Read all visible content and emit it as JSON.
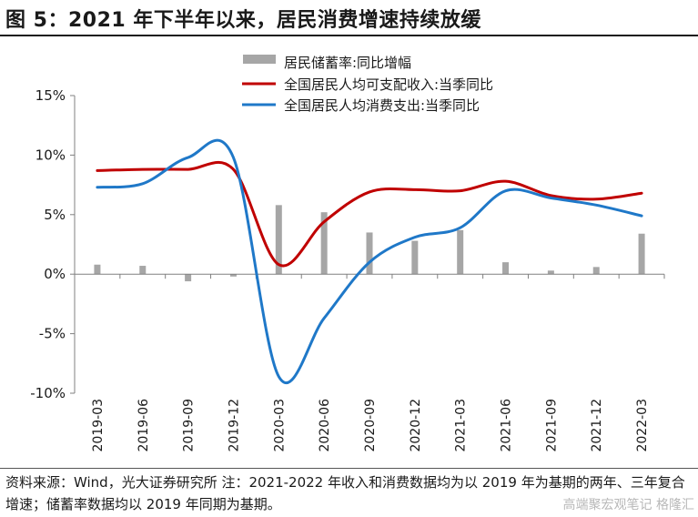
{
  "title": "图 5：2021 年下半年以来，居民消费增速持续放缓",
  "footnote": "资料来源：Wind，光大证券研究所 注：2021-2022 年收入和消费数据均为以 2019 年为基期的两年、三年复合增速；储蓄率数据均以 2019 年同期为基期。",
  "watermark": "高端聚宏观笔记 格隆汇",
  "colors": {
    "bar": "#a6a6a6",
    "income": "#c00000",
    "consumption": "#1f78c8",
    "axis": "#808080"
  },
  "chart_data": {
    "type": "bar+line",
    "categories": [
      "2019-03",
      "2019-06",
      "2019-09",
      "2019-12",
      "2020-03",
      "2020-06",
      "2020-09",
      "2020-12",
      "2021-03",
      "2021-06",
      "2021-09",
      "2021-12",
      "2022-03"
    ],
    "ylim": [
      -10,
      15
    ],
    "yticks": [
      15,
      10,
      5,
      0,
      -5,
      -10
    ],
    "ytick_labels": [
      "15%",
      "10%",
      "5%",
      "0%",
      "-5%",
      "-10%"
    ],
    "legend_position": "top-center",
    "series": [
      {
        "name": "居民储蓄率:同比增幅",
        "type": "bar",
        "values": [
          0.8,
          0.7,
          -0.6,
          -0.2,
          5.8,
          5.2,
          3.5,
          2.8,
          3.7,
          1.0,
          0.3,
          0.6,
          3.4
        ]
      },
      {
        "name": "全国居民人均可支配收入:当季同比",
        "type": "line",
        "values": [
          8.7,
          8.8,
          8.8,
          8.8,
          0.8,
          4.4,
          6.9,
          7.1,
          7.0,
          7.8,
          6.6,
          6.3,
          6.8
        ]
      },
      {
        "name": "全国居民人均消费支出:当季同比",
        "type": "line",
        "values": [
          7.3,
          7.6,
          9.8,
          9.8,
          -8.6,
          -3.7,
          1.0,
          3.1,
          3.9,
          7.0,
          6.4,
          5.8,
          4.9
        ]
      }
    ]
  }
}
